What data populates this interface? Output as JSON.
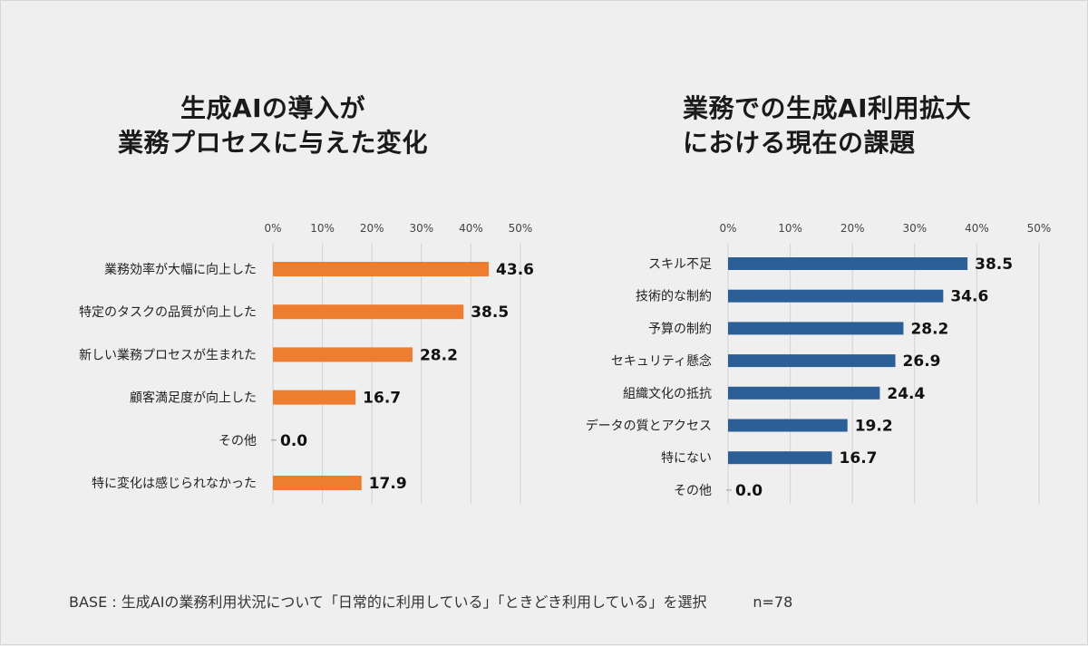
{
  "titles": {
    "left_line1": "生成AIの導入が",
    "left_line2": "業務プロセスに与えた変化",
    "right_line1": "業務での生成AI利用拡大",
    "right_line2": "における現在の課題"
  },
  "footer": {
    "base": "BASE : 生成AIの業務利用状況について「日常的に利用している」「ときどき利用している」を選択",
    "n": "n=78"
  },
  "chart_data": [
    {
      "type": "bar",
      "orientation": "horizontal",
      "title": "生成AIの導入が業務プロセスに与えた変化",
      "categories": [
        "業務効率が大幅に向上した",
        "特定のタスクの品質が向上した",
        "新しい業務プロセスが生まれた",
        "顧客満足度が向上した",
        "その他",
        "特に変化は感じられなかった"
      ],
      "values": [
        43.6,
        38.5,
        28.2,
        16.7,
        0.0,
        17.9
      ],
      "value_labels": [
        "43.6",
        "38.5",
        "28.2",
        "16.7",
        "0.0",
        "17.9"
      ],
      "xticks": [
        "0%",
        "10%",
        "20%",
        "30%",
        "40%",
        "50%"
      ],
      "xlim": [
        0,
        50
      ],
      "color": "#ed7d31",
      "grid": true
    },
    {
      "type": "bar",
      "orientation": "horizontal",
      "title": "業務での生成AI利用拡大における現在の課題",
      "categories": [
        "スキル不足",
        "技術的な制約",
        "予算の制約",
        "セキュリティ懸念",
        "組織文化の抵抗",
        "データの質とアクセス",
        "特にない",
        "その他"
      ],
      "values": [
        38.5,
        34.6,
        28.2,
        26.9,
        24.4,
        19.2,
        16.7,
        0.0
      ],
      "value_labels": [
        "38.5",
        "34.6",
        "28.2",
        "26.9",
        "24.4",
        "19.2",
        "16.7",
        "0.0"
      ],
      "xticks": [
        "0%",
        "10%",
        "20%",
        "30%",
        "40%",
        "50%"
      ],
      "xlim": [
        0,
        50
      ],
      "color": "#2c5f95",
      "grid": true
    }
  ]
}
